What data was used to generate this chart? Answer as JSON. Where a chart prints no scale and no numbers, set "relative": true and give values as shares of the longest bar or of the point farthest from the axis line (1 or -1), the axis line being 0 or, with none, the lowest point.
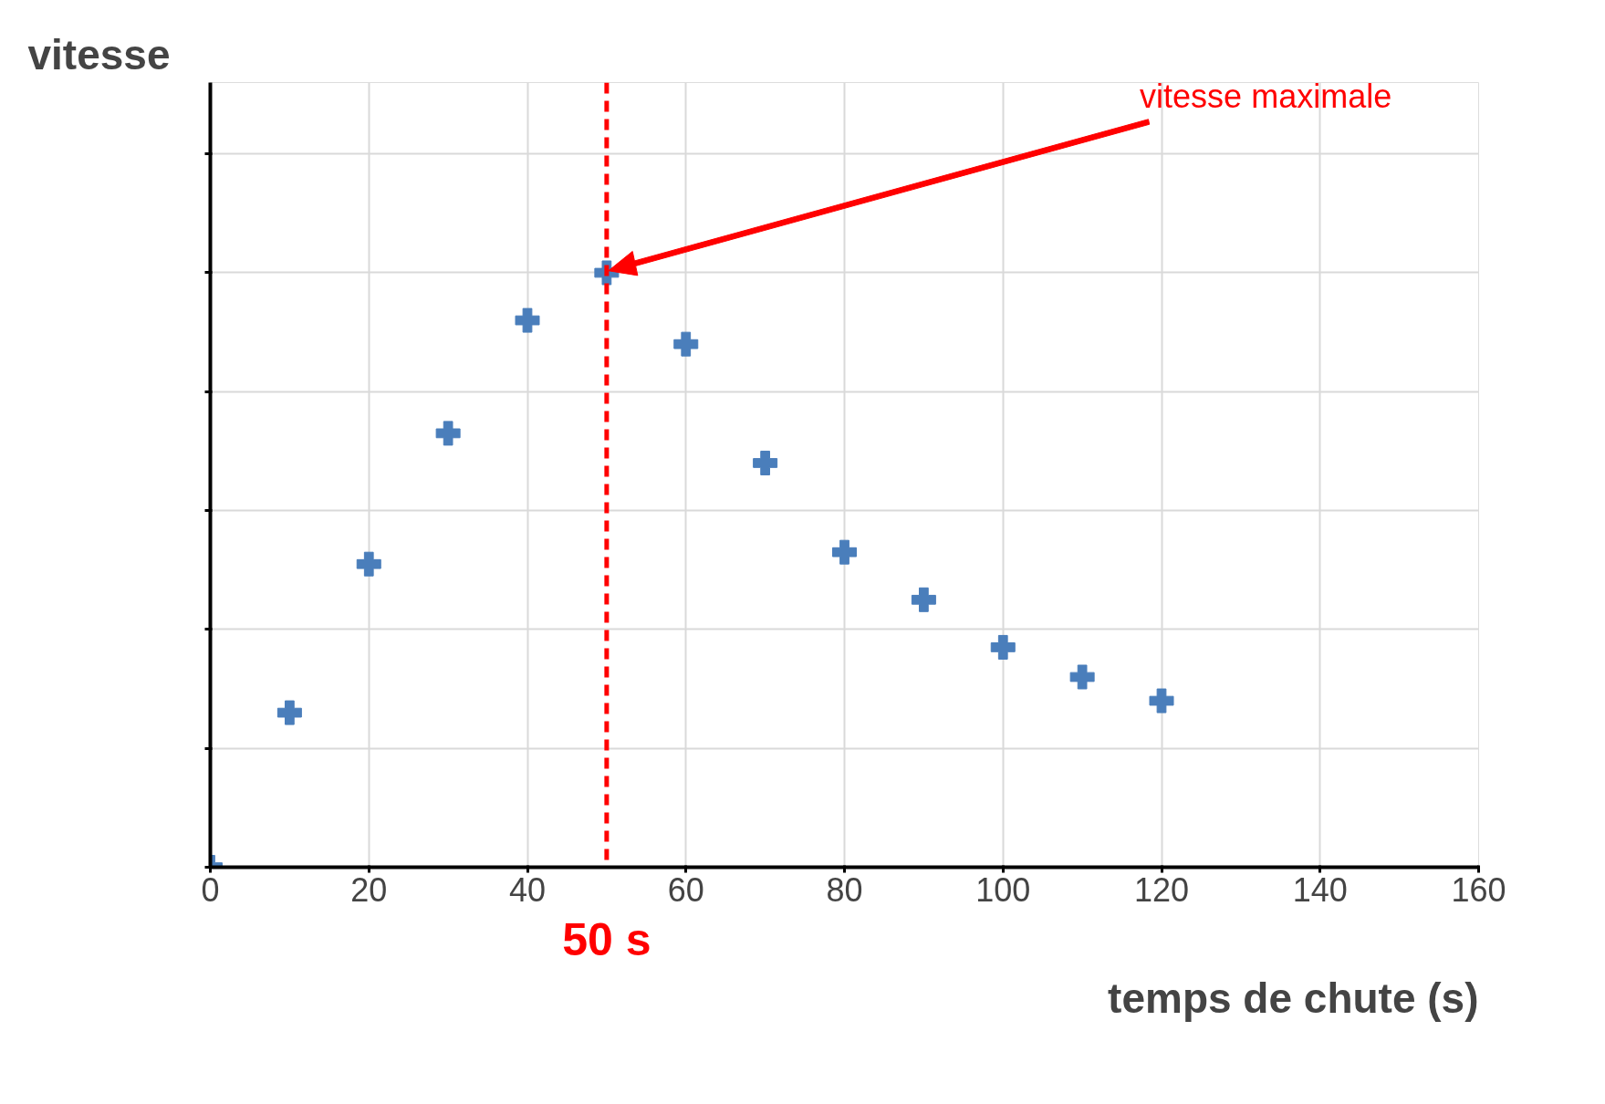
{
  "chart_data": {
    "type": "scatter",
    "xlabel": "temps de chute (s)",
    "ylabel": "vitesse",
    "relative": true,
    "x": [
      0,
      10,
      20,
      30,
      40,
      50,
      60,
      70,
      80,
      90,
      100,
      110,
      120
    ],
    "series": [
      {
        "color": "#4a7ebb",
        "values": [
          0,
          0.26,
          0.51,
          0.73,
          0.92,
          1,
          0.88,
          0.68,
          0.53,
          0.45,
          0.37,
          0.32,
          0.28
        ]
      }
    ],
    "xlim": [
      0,
      160
    ],
    "xticks": [
      0,
      20,
      40,
      60,
      80,
      100,
      120,
      140,
      160
    ],
    "grid": true,
    "marker": "cross",
    "ref_lines": [
      {
        "axis": "x",
        "value": 50,
        "label": "50 s",
        "color": "#ff0000",
        "line_style": "dashed"
      }
    ],
    "annotations": [
      "vitesse maximale"
    ]
  }
}
